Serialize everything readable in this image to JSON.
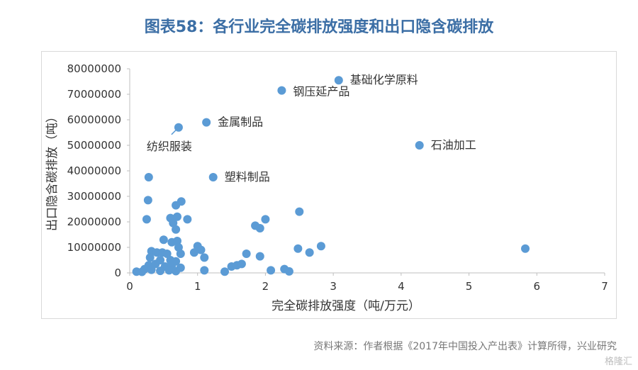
{
  "title": "图表58：各行业完全碳排放强度和出口隐含碳排放",
  "source": "资料来源：作者根据《2017年中国投入产出表》计算所得，兴业研究",
  "watermark": "格隆汇",
  "colors": {
    "title": "#3b6ea5",
    "point": "#5b9bd5",
    "axis": "#bfbfbf",
    "text": "#333333"
  },
  "chart_data": {
    "type": "scatter",
    "xlabel": "完全碳排放强度（吨/万元）",
    "ylabel": "出口隐含碳排放（吨）",
    "xlim": [
      0,
      7
    ],
    "ylim": [
      0,
      80000000
    ],
    "xticks": [
      "0",
      "1",
      "2",
      "3",
      "4",
      "5",
      "6",
      "7"
    ],
    "yticks": [
      "0",
      "10000000",
      "20000000",
      "30000000",
      "40000000",
      "50000000",
      "60000000",
      "70000000",
      "80000000"
    ],
    "grid": false,
    "legend": "none",
    "annotations": [
      {
        "label": "基础化学原料",
        "x": 3.08,
        "y": 75500000
      },
      {
        "label": "钢压延产品",
        "x": 2.24,
        "y": 71500000
      },
      {
        "label": "金属制品",
        "x": 1.13,
        "y": 59000000
      },
      {
        "label": "纺织服装",
        "x": 0.72,
        "y": 57000000
      },
      {
        "label": "石油加工",
        "x": 4.27,
        "y": 50000000
      },
      {
        "label": "塑料制品",
        "x": 1.23,
        "y": 37500000
      }
    ],
    "points": [
      [
        3.08,
        75500000
      ],
      [
        2.24,
        71500000
      ],
      [
        1.13,
        59000000
      ],
      [
        0.72,
        57000000
      ],
      [
        4.27,
        50000000
      ],
      [
        1.23,
        37500000
      ],
      [
        0.28,
        37500000
      ],
      [
        0.27,
        28500000
      ],
      [
        0.76,
        28000000
      ],
      [
        0.68,
        26500000
      ],
      [
        0.25,
        21000000
      ],
      [
        0.6,
        21500000
      ],
      [
        0.7,
        22000000
      ],
      [
        0.64,
        19500000
      ],
      [
        0.85,
        21000000
      ],
      [
        0.68,
        17000000
      ],
      [
        2.5,
        24000000
      ],
      [
        2.0,
        21000000
      ],
      [
        1.85,
        18500000
      ],
      [
        1.92,
        17500000
      ],
      [
        0.5,
        13000000
      ],
      [
        0.62,
        12000000
      ],
      [
        0.7,
        12500000
      ],
      [
        0.72,
        10000000
      ],
      [
        0.32,
        8500000
      ],
      [
        0.4,
        8000000
      ],
      [
        0.48,
        8000000
      ],
      [
        0.55,
        7500000
      ],
      [
        0.75,
        7500000
      ],
      [
        0.95,
        8000000
      ],
      [
        1.0,
        10500000
      ],
      [
        1.05,
        9000000
      ],
      [
        0.3,
        6000000
      ],
      [
        0.45,
        5000000
      ],
      [
        0.6,
        5000000
      ],
      [
        0.68,
        4500000
      ],
      [
        0.28,
        3000000
      ],
      [
        0.38,
        3500000
      ],
      [
        0.52,
        2500000
      ],
      [
        0.62,
        3000000
      ],
      [
        0.75,
        2000000
      ],
      [
        0.22,
        1500000
      ],
      [
        0.32,
        1200000
      ],
      [
        0.45,
        800000
      ],
      [
        0.58,
        1000000
      ],
      [
        0.68,
        700000
      ],
      [
        0.1,
        500000
      ],
      [
        0.18,
        400000
      ],
      [
        1.1,
        6000000
      ],
      [
        1.1,
        1000000
      ],
      [
        1.4,
        500000
      ],
      [
        1.5,
        2500000
      ],
      [
        1.58,
        3000000
      ],
      [
        1.65,
        3500000
      ],
      [
        1.72,
        7500000
      ],
      [
        1.92,
        6500000
      ],
      [
        2.08,
        1000000
      ],
      [
        2.28,
        1500000
      ],
      [
        2.35,
        600000
      ],
      [
        2.48,
        9500000
      ],
      [
        2.65,
        8000000
      ],
      [
        2.82,
        10500000
      ],
      [
        5.83,
        9500000
      ]
    ]
  }
}
